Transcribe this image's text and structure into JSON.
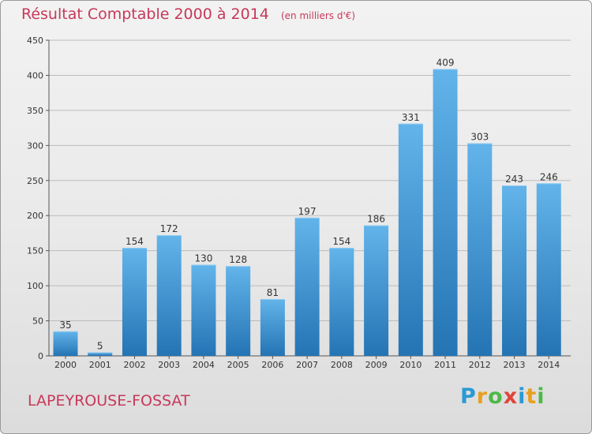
{
  "title": "Résultat Comptable 2000 à 2014",
  "subtitle": "(en milliers d'€)",
  "commune": "LAPEYROUSE-FOSSAT",
  "logo": {
    "letters": [
      "P",
      "r",
      "o",
      "x",
      "i",
      "t",
      "i"
    ],
    "colors": [
      "#2a9ad4",
      "#e8a020",
      "#4db848",
      "#e0443a",
      "#2a9ad4",
      "#e8a020",
      "#4db848"
    ]
  },
  "colors": {
    "bar_light": "#62b4ea",
    "bar_dark": "#2474b4",
    "grid": "#bcbcbc",
    "title": "#c8385a"
  },
  "chart_data": {
    "type": "bar",
    "title": "Résultat Comptable 2000 à 2014",
    "subtitle": "(en milliers d'€)",
    "xlabel": "",
    "ylabel": "",
    "ylim": [
      0,
      450
    ],
    "yticks": [
      0,
      50,
      100,
      150,
      200,
      250,
      300,
      350,
      400,
      450
    ],
    "categories": [
      "2000",
      "2001",
      "2002",
      "2003",
      "2004",
      "2005",
      "2006",
      "2007",
      "2008",
      "2009",
      "2010",
      "2011",
      "2012",
      "2013",
      "2014"
    ],
    "values": [
      35,
      5,
      154,
      172,
      130,
      128,
      81,
      197,
      154,
      186,
      331,
      409,
      303,
      243,
      246
    ]
  }
}
